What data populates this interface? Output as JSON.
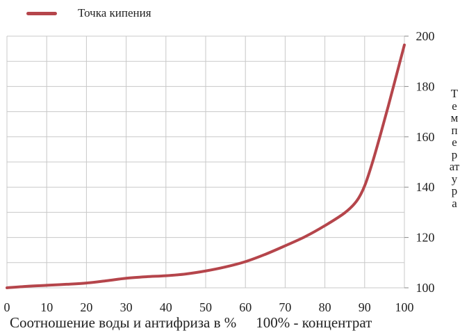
{
  "chart_data": {
    "type": "line",
    "legend": {
      "label": "Точка кипения",
      "position": "top-left"
    },
    "xlabel": "Соотношение воды и антифриза в %",
    "xlabel_note": "100% - концентрат",
    "ylabel": "Температура",
    "xlim": [
      0,
      100
    ],
    "ylim": [
      100,
      200
    ],
    "x_ticks": [
      0,
      10,
      20,
      30,
      40,
      50,
      60,
      70,
      80,
      90,
      100
    ],
    "y_ticks": [
      100,
      120,
      140,
      160,
      180,
      200
    ],
    "grid": true,
    "series": [
      {
        "name": "Точка кипения",
        "color": "#b5454b",
        "x": [
          0,
          5,
          10,
          15,
          20,
          25,
          30,
          35,
          40,
          45,
          50,
          55,
          60,
          65,
          70,
          75,
          80,
          85,
          88,
          90,
          92,
          94,
          96,
          98,
          100
        ],
        "y": [
          100,
          100.6,
          101,
          101.4,
          101.9,
          102.8,
          103.8,
          104.4,
          104.8,
          105.5,
          106.7,
          108.3,
          110.4,
          113.3,
          116.7,
          120.3,
          124.7,
          129.8,
          134.5,
          140.5,
          150,
          161,
          172.5,
          184.5,
          196.5
        ]
      }
    ]
  }
}
